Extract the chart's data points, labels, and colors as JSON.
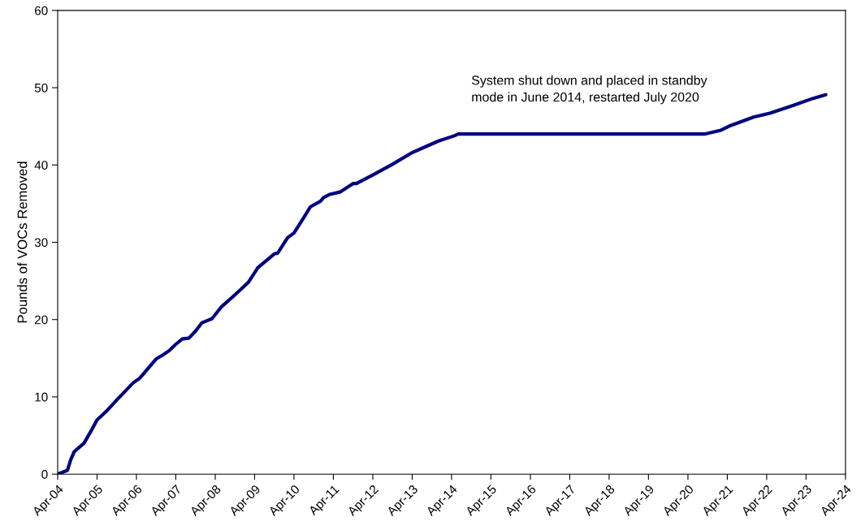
{
  "chart_data": {
    "type": "line",
    "ylabel": "Pounds of VOCs Removed",
    "annotations": [
      "System shut down and placed in standby\nmode in June 2014, restarted July 2020"
    ],
    "xlim": [
      "2004-04",
      "2024-04"
    ],
    "xticks": [
      {
        "value": "2004-04",
        "label": "Apr-04"
      },
      {
        "value": "2005-04",
        "label": "Apr-05"
      },
      {
        "value": "2006-04",
        "label": "Apr-06"
      },
      {
        "value": "2007-04",
        "label": "Apr-07"
      },
      {
        "value": "2008-04",
        "label": "Apr-08"
      },
      {
        "value": "2009-04",
        "label": "Apr-09"
      },
      {
        "value": "2010-04",
        "label": "Apr-10"
      },
      {
        "value": "2011-04",
        "label": "Apr-11"
      },
      {
        "value": "2012-04",
        "label": "Apr-12"
      },
      {
        "value": "2013-04",
        "label": "Apr-13"
      },
      {
        "value": "2014-04",
        "label": "Apr-14"
      },
      {
        "value": "2015-04",
        "label": "Apr-15"
      },
      {
        "value": "2016-04",
        "label": "Apr-16"
      },
      {
        "value": "2017-04",
        "label": "Apr-17"
      },
      {
        "value": "2018-04",
        "label": "Apr-18"
      },
      {
        "value": "2019-04",
        "label": "Apr-19"
      },
      {
        "value": "2020-04",
        "label": "Apr-20"
      },
      {
        "value": "2021-04",
        "label": "Apr-21"
      },
      {
        "value": "2022-04",
        "label": "Apr-22"
      },
      {
        "value": "2023-04",
        "label": "Apr-23"
      },
      {
        "value": "2024-04",
        "label": "Apr-24"
      }
    ],
    "ylim": [
      0,
      60
    ],
    "yticks": [
      0,
      10,
      20,
      30,
      40,
      50,
      60
    ],
    "grid": false,
    "legend": false,
    "marker": "none",
    "line_style": "solid",
    "x": [
      "2004-04",
      "2004-07",
      "2004-08",
      "2004-09",
      "2004-12",
      "2005-02",
      "2005-04",
      "2005-07",
      "2005-10",
      "2006-03",
      "2006-05",
      "2006-10",
      "2006-12",
      "2007-02",
      "2007-04",
      "2007-06",
      "2007-08",
      "2007-10",
      "2007-12",
      "2008-03",
      "2008-06",
      "2008-10",
      "2009-02",
      "2009-05",
      "2009-10",
      "2009-11",
      "2010-02",
      "2010-04",
      "2010-07",
      "2010-09",
      "2010-12",
      "2011-01",
      "2011-03",
      "2011-06",
      "2011-10",
      "2011-11",
      "2012-04",
      "2012-10",
      "2013-04",
      "2013-12",
      "2014-05",
      "2014-06",
      "2020-09",
      "2021-02",
      "2021-05",
      "2021-12",
      "2022-05",
      "2022-12",
      "2023-06",
      "2023-10"
    ],
    "series": [
      {
        "color": "#000080",
        "values": [
          0,
          0.5,
          1.9,
          2.9,
          4.0,
          5.5,
          7.0,
          8.2,
          9.6,
          11.8,
          12.4,
          14.9,
          15.4,
          16.0,
          16.8,
          17.5,
          17.6,
          18.5,
          19.6,
          20.1,
          21.7,
          23.2,
          24.8,
          26.7,
          28.5,
          28.6,
          30.6,
          31.2,
          33.2,
          34.6,
          35.3,
          35.8,
          36.2,
          36.5,
          37.6,
          37.6,
          38.7,
          40.1,
          41.6,
          43.1,
          43.8,
          44.0,
          44.0,
          44.5,
          45.1,
          46.2,
          46.7,
          47.7,
          48.6,
          49.1
        ]
      }
    ]
  }
}
